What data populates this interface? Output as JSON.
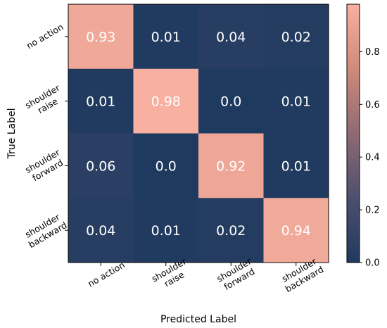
{
  "chart_data": {
    "type": "heatmap",
    "xlabel": "Predicted Label",
    "ylabel": "True Label",
    "x_categories": [
      [
        "no action"
      ],
      [
        "shoulder",
        "raise"
      ],
      [
        "shoulder",
        "forward"
      ],
      [
        "shoulder",
        "backward"
      ]
    ],
    "y_categories": [
      [
        "no action"
      ],
      [
        "shoulder",
        "raise"
      ],
      [
        "shoulder",
        "forward"
      ],
      [
        "shoulder",
        "backward"
      ]
    ],
    "values": [
      [
        0.93,
        0.01,
        0.04,
        0.02
      ],
      [
        0.01,
        0.98,
        0.0,
        0.01
      ],
      [
        0.06,
        0.0,
        0.92,
        0.01
      ],
      [
        0.04,
        0.01,
        0.02,
        0.94
      ]
    ],
    "value_labels": [
      [
        "0.93",
        "0.01",
        "0.04",
        "0.02"
      ],
      [
        "0.01",
        "0.98",
        "0.0",
        "0.01"
      ],
      [
        "0.06",
        "0.0",
        "0.92",
        "0.01"
      ],
      [
        "0.04",
        "0.01",
        "0.02",
        "0.94"
      ]
    ],
    "colorbar": {
      "range": [
        0.0,
        0.98
      ],
      "ticks": [
        0.0,
        0.2,
        0.4,
        0.6,
        0.8
      ],
      "tick_labels": [
        "0.0",
        "0.2",
        "0.4",
        "0.6",
        "0.8"
      ],
      "colors": [
        "#1f3a5f",
        "#4d4f6e",
        "#8f6a74",
        "#cf8a7a",
        "#f8b0a0"
      ]
    },
    "grid": false
  }
}
